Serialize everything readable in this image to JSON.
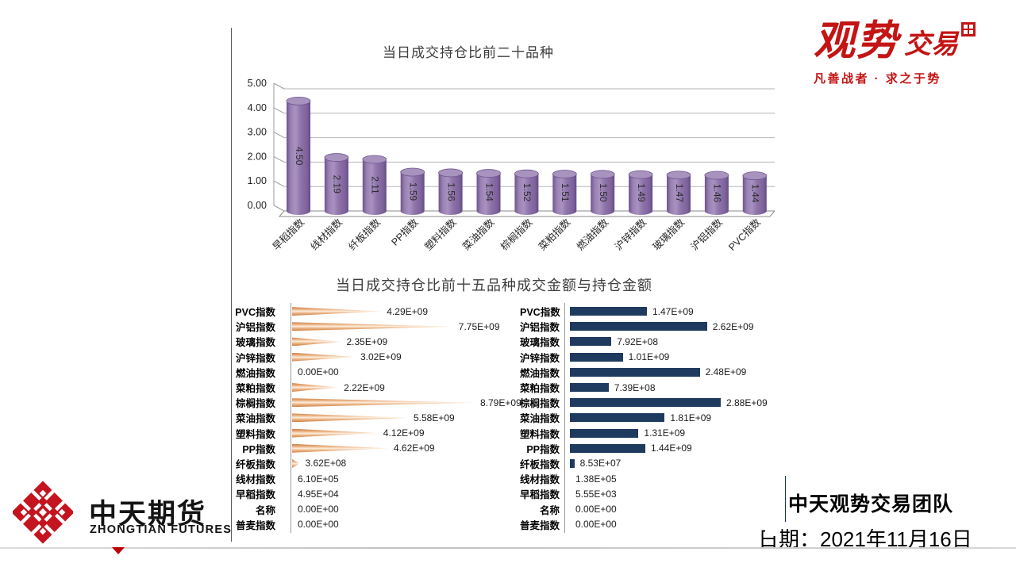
{
  "branding": {
    "guanshi": {
      "main": "观势",
      "sub": "交易",
      "tagline": "凡善战者 · 求之于势",
      "color": "#c41414"
    },
    "zhongtian": {
      "cn": "中天期货",
      "en": "ZHONGTIAN FUTURES",
      "mark_color": "#c41420"
    },
    "team_line": "中天观势交易团队",
    "date_line": "日期：2021年11月16日"
  },
  "chart_data": [
    {
      "id": "top20-ratio-cylinder-chart",
      "type": "bar",
      "style": "3d-cylinder",
      "title": "当日成交持仓比前二十品种",
      "categories": [
        "早稻指数",
        "线材指数",
        "纤板指数",
        "PP指数",
        "塑料指数",
        "菜油指数",
        "棕榈指数",
        "菜粕指数",
        "燃油指数",
        "沪锌指数",
        "玻璃指数",
        "沪铝指数",
        "PVC指数"
      ],
      "values": [
        4.5,
        2.19,
        2.11,
        1.59,
        1.56,
        1.54,
        1.52,
        1.51,
        1.5,
        1.49,
        1.47,
        1.46,
        1.44
      ],
      "value_labels": [
        "4.50",
        "2.19",
        "2.11",
        "1.59",
        "1.56",
        "1.54",
        "1.52",
        "1.51",
        "1.50",
        "1.49",
        "1.47",
        "1.46",
        "1.44"
      ],
      "ylim": [
        0,
        5
      ],
      "ytick_labels": [
        "0.00",
        "1.00",
        "2.00",
        "3.00",
        "4.00",
        "5.00"
      ],
      "bar_color": "#8c73a6",
      "grid": true,
      "legend": false
    },
    {
      "id": "top15-amount-charts",
      "type": "bar-horizontal",
      "title": "当日成交持仓比前十五品种成交金额与持仓金额",
      "categories": [
        "PVC指数",
        "沪铝指数",
        "玻璃指数",
        "沪锌指数",
        "燃油指数",
        "菜粕指数",
        "棕榈指数",
        "菜油指数",
        "塑料指数",
        "PP指数",
        "纤板指数",
        "线材指数",
        "早稻指数",
        "名称",
        "普麦指数"
      ],
      "series": [
        {
          "name": "成交金额",
          "bar_shape": "cone",
          "color": "#e09a62",
          "xmax": 8790000000.0,
          "values": [
            4290000000.0,
            7750000000.0,
            2350000000.0,
            3020000000.0,
            0.0,
            2220000000.0,
            8790000000.0,
            5580000000.0,
            4120000000.0,
            4620000000.0,
            362000000.0,
            610000.0,
            49500.0,
            0.0,
            0.0
          ],
          "value_labels": [
            "4.29E+09",
            "7.75E+09",
            "2.35E+09",
            "3.02E+09",
            "0.00E+00",
            "2.22E+09",
            "8.79E+09",
            "5.58E+09",
            "4.12E+09",
            "4.62E+09",
            "3.62E+08",
            "6.10E+05",
            "4.95E+04",
            "0.00E+00",
            "0.00E+00"
          ]
        },
        {
          "name": "持仓金额",
          "bar_shape": "rect",
          "color": "#1f3a5f",
          "xmax": 2880000000.0,
          "values": [
            1470000000.0,
            2620000000.0,
            792000000.0,
            1010000000.0,
            2480000000.0,
            739000000.0,
            2880000000.0,
            1810000000.0,
            1310000000.0,
            1440000000.0,
            85300000.0,
            138000.0,
            5550.0,
            0.0,
            0.0
          ],
          "value_labels": [
            "1.47E+09",
            "2.62E+09",
            "7.92E+08",
            "1.01E+09",
            "2.48E+09",
            "7.39E+08",
            "2.88E+09",
            "1.81E+09",
            "1.31E+09",
            "1.44E+09",
            "8.53E+07",
            "1.38E+05",
            "5.55E+03",
            "0.00E+00",
            "0.00E+00"
          ]
        }
      ]
    }
  ]
}
